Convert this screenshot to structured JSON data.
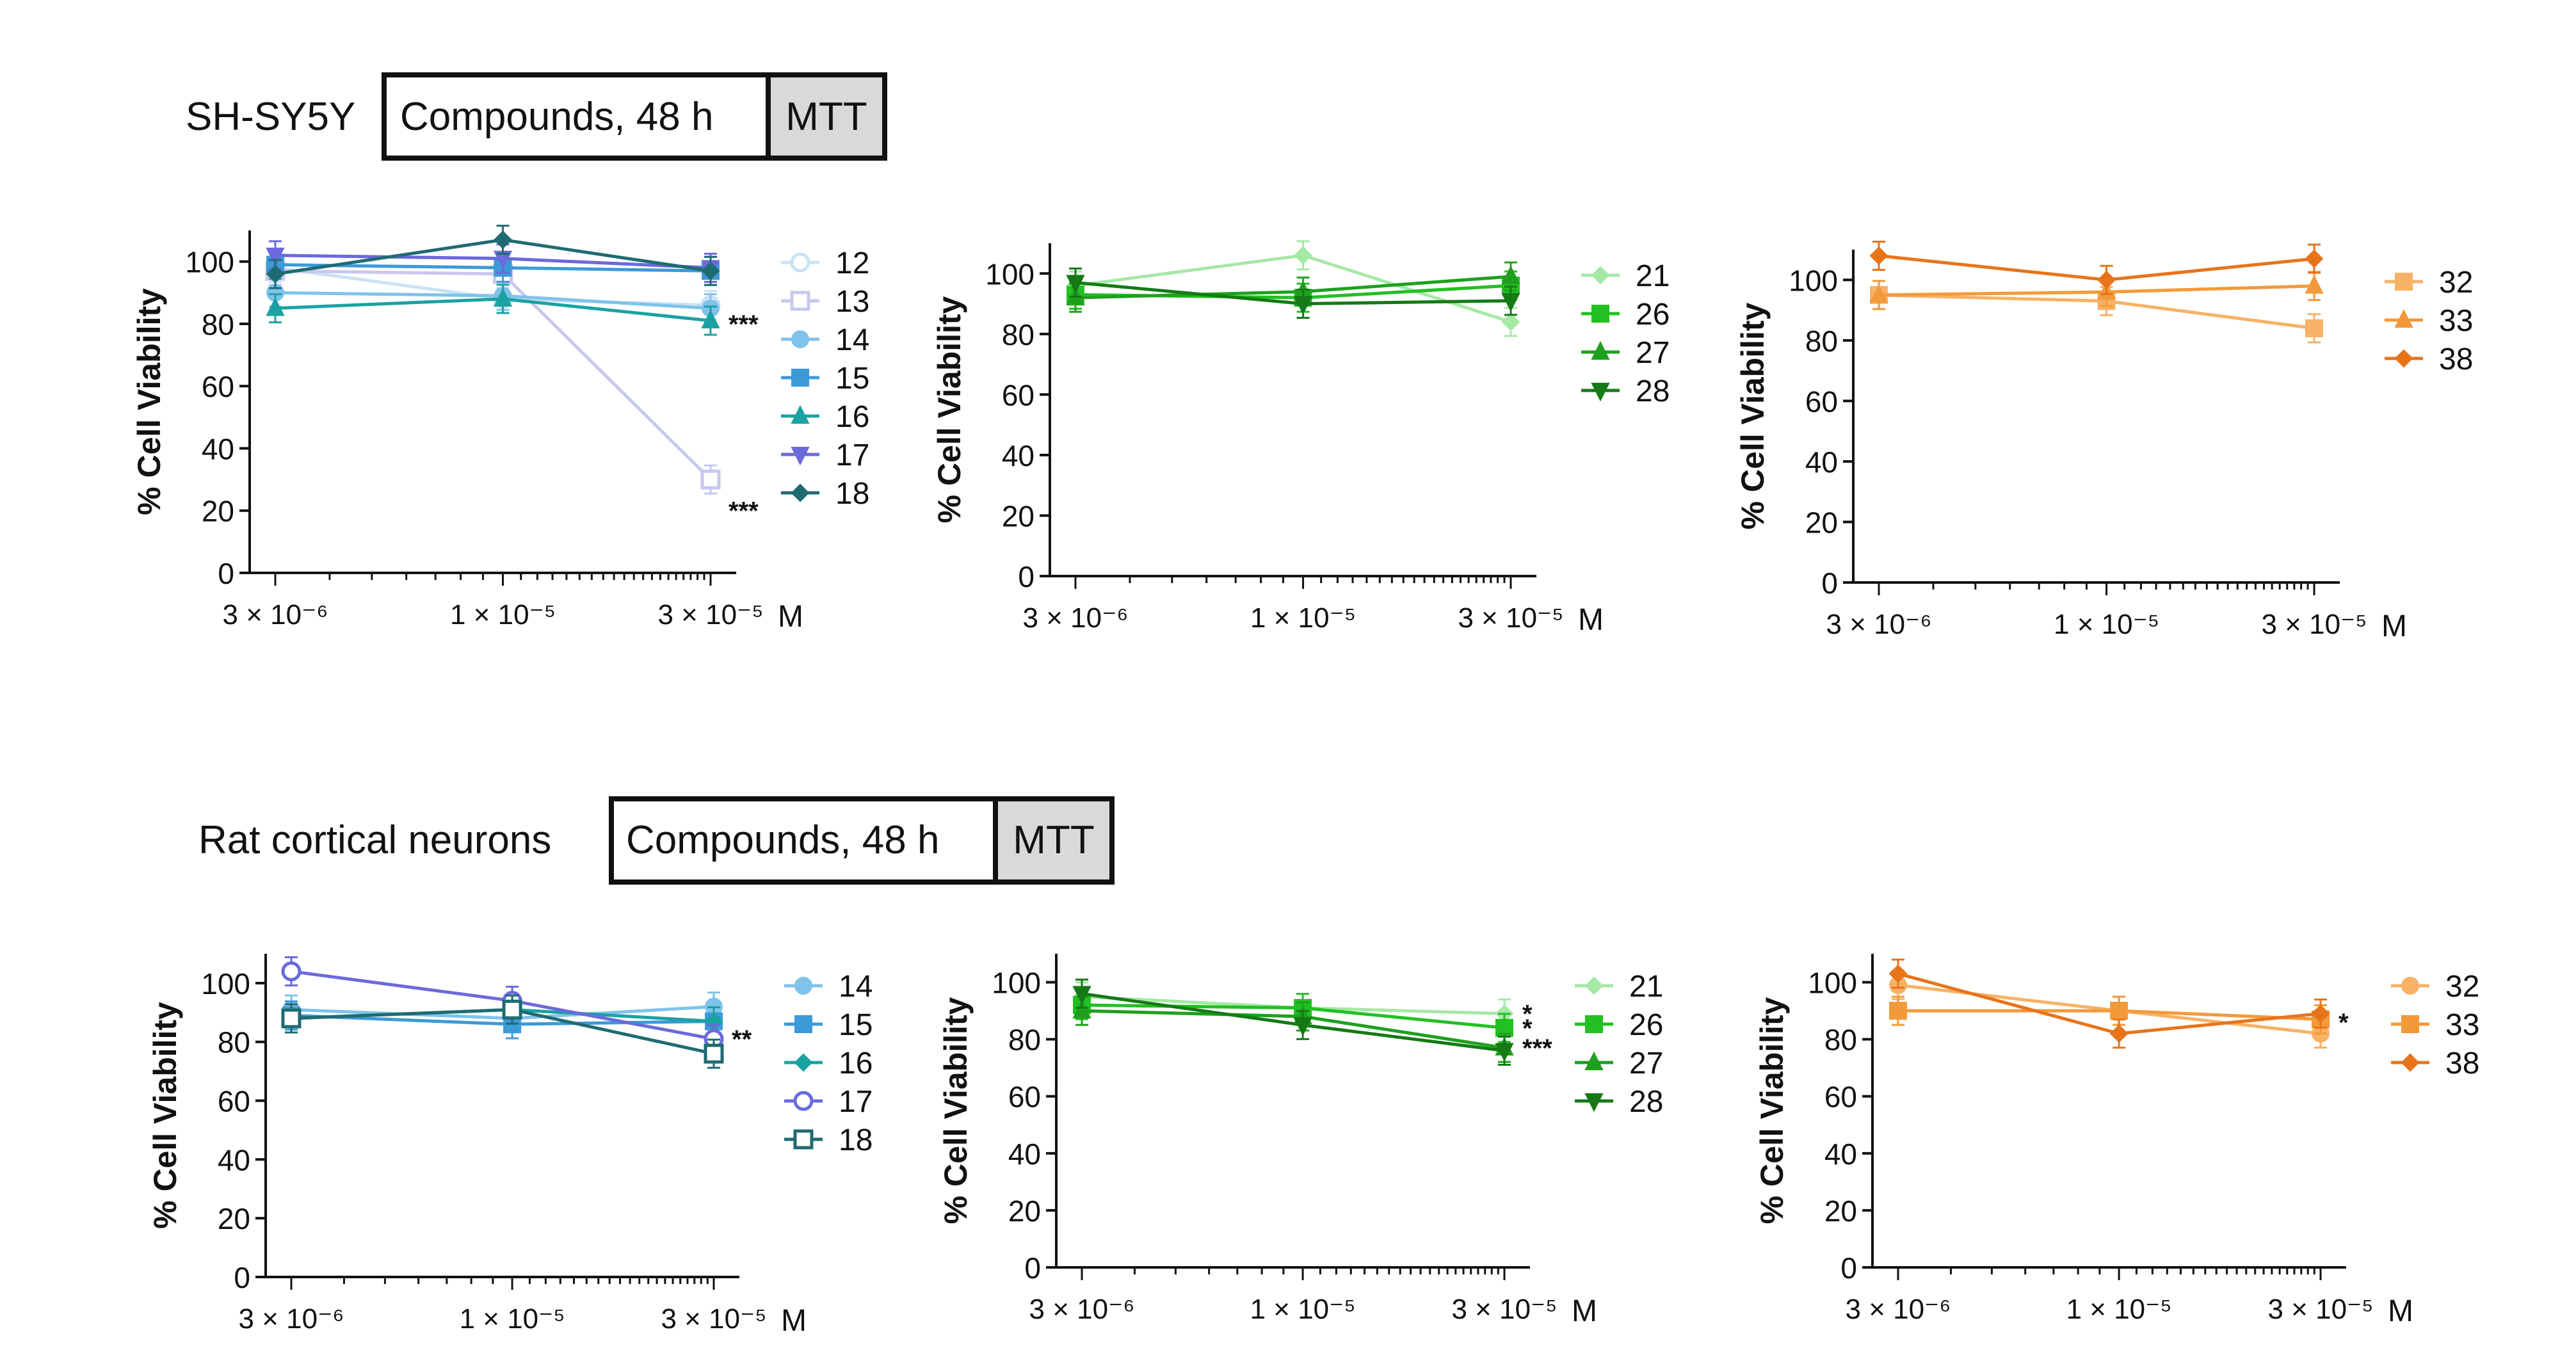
{
  "rows": [
    {
      "label": "SH-SY5Y",
      "box_text": "Compounds, 48 h",
      "box_assay": "MTT"
    },
    {
      "label": "Rat cortical neurons",
      "box_text": "Compounds, 48 h",
      "box_assay": "MTT"
    }
  ],
  "chart_data": [
    {
      "type": "line",
      "xscale": "log",
      "ylabel": "% Cell Viability",
      "x": [
        3e-06,
        1e-05,
        3e-05
      ],
      "x_ticklabels": [
        "3 × 10⁻⁶",
        "1 × 10⁻⁵",
        "3 × 10⁻⁵"
      ],
      "x_unit": "M",
      "ylim": [
        0,
        110
      ],
      "yticks": [
        0,
        20,
        40,
        60,
        80,
        100
      ],
      "legend": "right",
      "series": [
        {
          "name": "12",
          "color": "#c9e3f5",
          "marker": "circle-open",
          "values": [
            98,
            88,
            86
          ]
        },
        {
          "name": "13",
          "color": "#c8c8ee",
          "marker": "square-open",
          "values": [
            97,
            96,
            30
          ]
        },
        {
          "name": "14",
          "color": "#7fc3ea",
          "marker": "circle",
          "values": [
            90,
            89,
            85
          ]
        },
        {
          "name": "15",
          "color": "#3c9ad8",
          "marker": "square",
          "values": [
            99,
            98,
            97
          ]
        },
        {
          "name": "16",
          "color": "#1aa2a2",
          "marker": "triangle",
          "values": [
            85,
            88,
            81
          ]
        },
        {
          "name": "17",
          "color": "#6a6adc",
          "marker": "triangle-down",
          "values": [
            102,
            101,
            98
          ]
        },
        {
          "name": "18",
          "color": "#1f6b72",
          "marker": "diamond",
          "values": [
            96,
            107,
            97
          ]
        }
      ],
      "annotations": [
        {
          "x": 3e-05,
          "y": 80,
          "text": "***"
        },
        {
          "x": 3e-05,
          "y": 20,
          "text": "***"
        }
      ]
    },
    {
      "type": "line",
      "xscale": "log",
      "ylabel": "% Cell Viability",
      "x": [
        3e-06,
        1e-05,
        3e-05
      ],
      "x_ticklabels": [
        "3 × 10⁻⁶",
        "1 × 10⁻⁵",
        "3 × 10⁻⁵"
      ],
      "x_unit": "M",
      "ylim": [
        0,
        110
      ],
      "yticks": [
        0,
        20,
        40,
        60,
        80,
        100
      ],
      "legend": "right",
      "series": [
        {
          "name": "21",
          "color": "#a6e8a6",
          "marker": "diamond",
          "values": [
            96,
            106,
            84
          ]
        },
        {
          "name": "26",
          "color": "#22c022",
          "marker": "square",
          "values": [
            93,
            92,
            96
          ]
        },
        {
          "name": "27",
          "color": "#1ea01e",
          "marker": "triangle",
          "values": [
            92,
            94,
            99
          ]
        },
        {
          "name": "28",
          "color": "#157a15",
          "marker": "triangle-down",
          "values": [
            97,
            90,
            91
          ]
        }
      ],
      "annotations": []
    },
    {
      "type": "line",
      "xscale": "log",
      "ylabel": "% Cell Viability",
      "x": [
        3e-06,
        1e-05,
        3e-05
      ],
      "x_ticklabels": [
        "3 × 10⁻⁶",
        "1 × 10⁻⁵",
        "3 × 10⁻⁵"
      ],
      "x_unit": "M",
      "ylim": [
        0,
        110
      ],
      "yticks": [
        0,
        20,
        40,
        60,
        80,
        100
      ],
      "legend": "right",
      "series": [
        {
          "name": "32",
          "color": "#f7b267",
          "marker": "square",
          "values": [
            95,
            93,
            84
          ]
        },
        {
          "name": "33",
          "color": "#f29a3a",
          "marker": "triangle",
          "values": [
            95,
            96,
            98
          ]
        },
        {
          "name": "38",
          "color": "#e8741a",
          "marker": "diamond",
          "values": [
            108,
            100,
            107
          ]
        }
      ],
      "annotations": []
    },
    {
      "type": "line",
      "xscale": "log",
      "ylabel": "% Cell Viability",
      "x": [
        3e-06,
        1e-05,
        3e-05
      ],
      "x_ticklabels": [
        "3 × 10⁻⁶",
        "1 × 10⁻⁵",
        "3 × 10⁻⁵"
      ],
      "x_unit": "M",
      "ylim": [
        0,
        110
      ],
      "yticks": [
        0,
        20,
        40,
        60,
        80,
        100
      ],
      "legend": "right",
      "series": [
        {
          "name": "14",
          "color": "#7fc3ea",
          "marker": "circle",
          "values": [
            91,
            88,
            92
          ]
        },
        {
          "name": "15",
          "color": "#3c9ad8",
          "marker": "square",
          "values": [
            89,
            86,
            87
          ]
        },
        {
          "name": "16",
          "color": "#1aa2a2",
          "marker": "diamond",
          "values": [
            88,
            91,
            87
          ]
        },
        {
          "name": "17",
          "color": "#6a6adc",
          "marker": "circle-open",
          "values": [
            104,
            94,
            81
          ]
        },
        {
          "name": "18",
          "color": "#1f6b72",
          "marker": "square-open",
          "values": [
            88,
            91,
            76
          ]
        }
      ],
      "annotations": [
        {
          "x": 3e-05,
          "y": 81,
          "text": "**"
        }
      ]
    },
    {
      "type": "line",
      "xscale": "log",
      "ylabel": "% Cell Viability",
      "x": [
        3e-06,
        1e-05,
        3e-05
      ],
      "x_ticklabels": [
        "3 × 10⁻⁶",
        "1 × 10⁻⁵",
        "3 × 10⁻⁵"
      ],
      "x_unit": "M",
      "ylim": [
        0,
        110
      ],
      "yticks": [
        0,
        20,
        40,
        60,
        80,
        100
      ],
      "legend": "right",
      "series": [
        {
          "name": "21",
          "color": "#a6e8a6",
          "marker": "diamond",
          "values": [
            95,
            91,
            89
          ]
        },
        {
          "name": "26",
          "color": "#22c022",
          "marker": "square",
          "values": [
            92,
            91,
            84
          ]
        },
        {
          "name": "27",
          "color": "#1ea01e",
          "marker": "triangle",
          "values": [
            90,
            88,
            77
          ]
        },
        {
          "name": "28",
          "color": "#157a15",
          "marker": "triangle-down",
          "values": [
            96,
            85,
            76
          ]
        }
      ],
      "annotations": [
        {
          "x": 3e-05,
          "y": 89,
          "text": "*"
        },
        {
          "x": 3e-05,
          "y": 84,
          "text": "*"
        },
        {
          "x": 3e-05,
          "y": 77,
          "text": "***"
        }
      ]
    },
    {
      "type": "line",
      "xscale": "log",
      "ylabel": "% Cell Viability",
      "x": [
        3e-06,
        1e-05,
        3e-05
      ],
      "x_ticklabels": [
        "3 × 10⁻⁶",
        "1 × 10⁻⁵",
        "3 × 10⁻⁵"
      ],
      "x_unit": "M",
      "ylim": [
        0,
        110
      ],
      "yticks": [
        0,
        20,
        40,
        60,
        80,
        100
      ],
      "legend": "right",
      "series": [
        {
          "name": "32",
          "color": "#f7b267",
          "marker": "circle",
          "values": [
            99,
            90,
            82
          ]
        },
        {
          "name": "33",
          "color": "#f29a3a",
          "marker": "square",
          "values": [
            90,
            90,
            87
          ]
        },
        {
          "name": "38",
          "color": "#e8741a",
          "marker": "diamond",
          "values": [
            103,
            82,
            89
          ]
        }
      ],
      "annotations": [
        {
          "x": 3e-05,
          "y": 86,
          "text": "*"
        }
      ]
    }
  ]
}
